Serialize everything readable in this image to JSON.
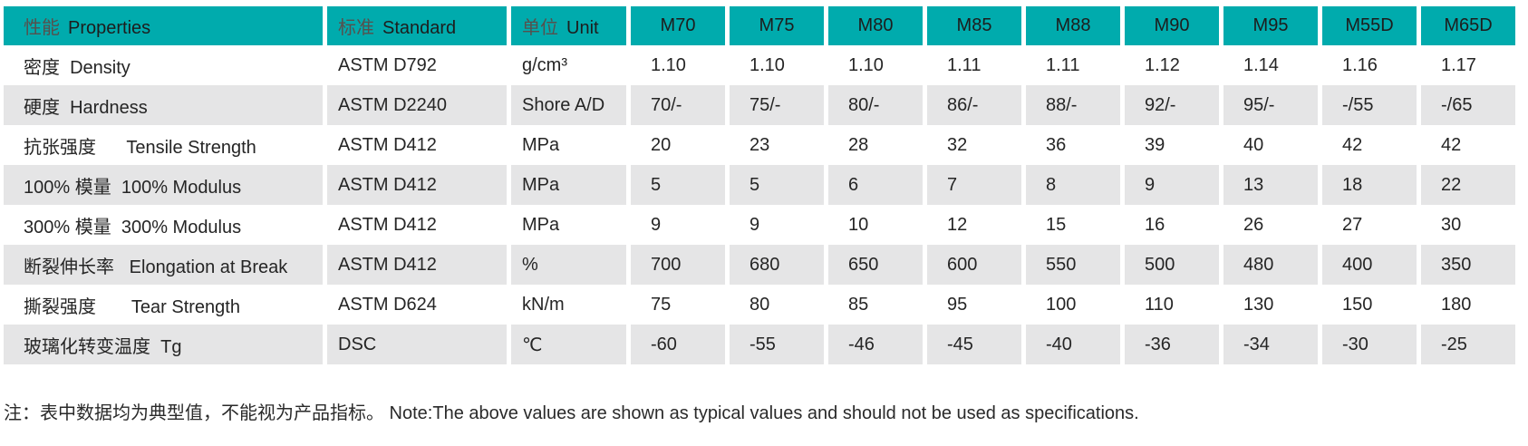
{
  "colors": {
    "header_bg": "#00abad",
    "alt_row_bg": "#e5e5e6",
    "body_text": "#252525",
    "header_cn_text": "#56504d",
    "header_en_text": "#1d1d1d",
    "note_text": "#2a2a2a"
  },
  "table": {
    "header": {
      "properties_cn": "性能",
      "properties_en": "Properties",
      "standard_cn": "标准",
      "standard_en": "Standard",
      "unit_cn": "单位",
      "unit_en": "Unit",
      "grades": [
        "M70",
        "M75",
        "M80",
        "M85",
        "M88",
        "M90",
        "M95",
        "M55D",
        "M65D"
      ]
    },
    "rows": [
      {
        "property": "密度  Density",
        "standard": "ASTM D792",
        "unit": "g/cm³",
        "values": [
          "1.10",
          "1.10",
          "1.10",
          "1.11",
          "1.11",
          "1.12",
          "1.14",
          "1.16",
          "1.17"
        ]
      },
      {
        "property": "硬度  Hardness",
        "standard": "ASTM D2240",
        "unit": "Shore A/D",
        "values": [
          "70/-",
          "75/-",
          "80/-",
          "86/-",
          "88/-",
          "92/-",
          "95/-",
          "-/55",
          "-/65"
        ]
      },
      {
        "property": "抗张强度      Tensile Strength",
        "standard": "ASTM D412",
        "unit": "MPa",
        "values": [
          "20",
          "23",
          "28",
          "32",
          "36",
          "39",
          "40",
          "42",
          "42"
        ]
      },
      {
        "property": "100% 模量  100% Modulus",
        "standard": "ASTM D412",
        "unit": "MPa",
        "values": [
          "5",
          "5",
          "6",
          "7",
          "8",
          "9",
          "13",
          "18",
          "22"
        ]
      },
      {
        "property": "300% 模量  300% Modulus",
        "standard": "ASTM D412",
        "unit": "MPa",
        "values": [
          "9",
          "9",
          "10",
          "12",
          "15",
          "16",
          "26",
          "27",
          "30"
        ]
      },
      {
        "property": "断裂伸长率   Elongation at Break",
        "standard": "ASTM D412",
        "unit": "%",
        "values": [
          "700",
          "680",
          "650",
          "600",
          "550",
          "500",
          "480",
          "400",
          "350"
        ]
      },
      {
        "property": "撕裂强度       Tear Strength",
        "standard": "ASTM D624",
        "unit": "kN/m",
        "values": [
          "75",
          "80",
          "85",
          "95",
          "100",
          "110",
          "130",
          "150",
          "180"
        ]
      },
      {
        "property": "玻璃化转变温度  Tg",
        "standard": "DSC",
        "unit": "℃",
        "values": [
          "-60",
          "-55",
          "-46",
          "-45",
          "-40",
          "-36",
          "-34",
          "-30",
          "-25"
        ]
      }
    ]
  },
  "note": "注：表中数据均为典型值，不能视为产品指标。 Note:The above values are shown as typical values and should not be used as specifications."
}
